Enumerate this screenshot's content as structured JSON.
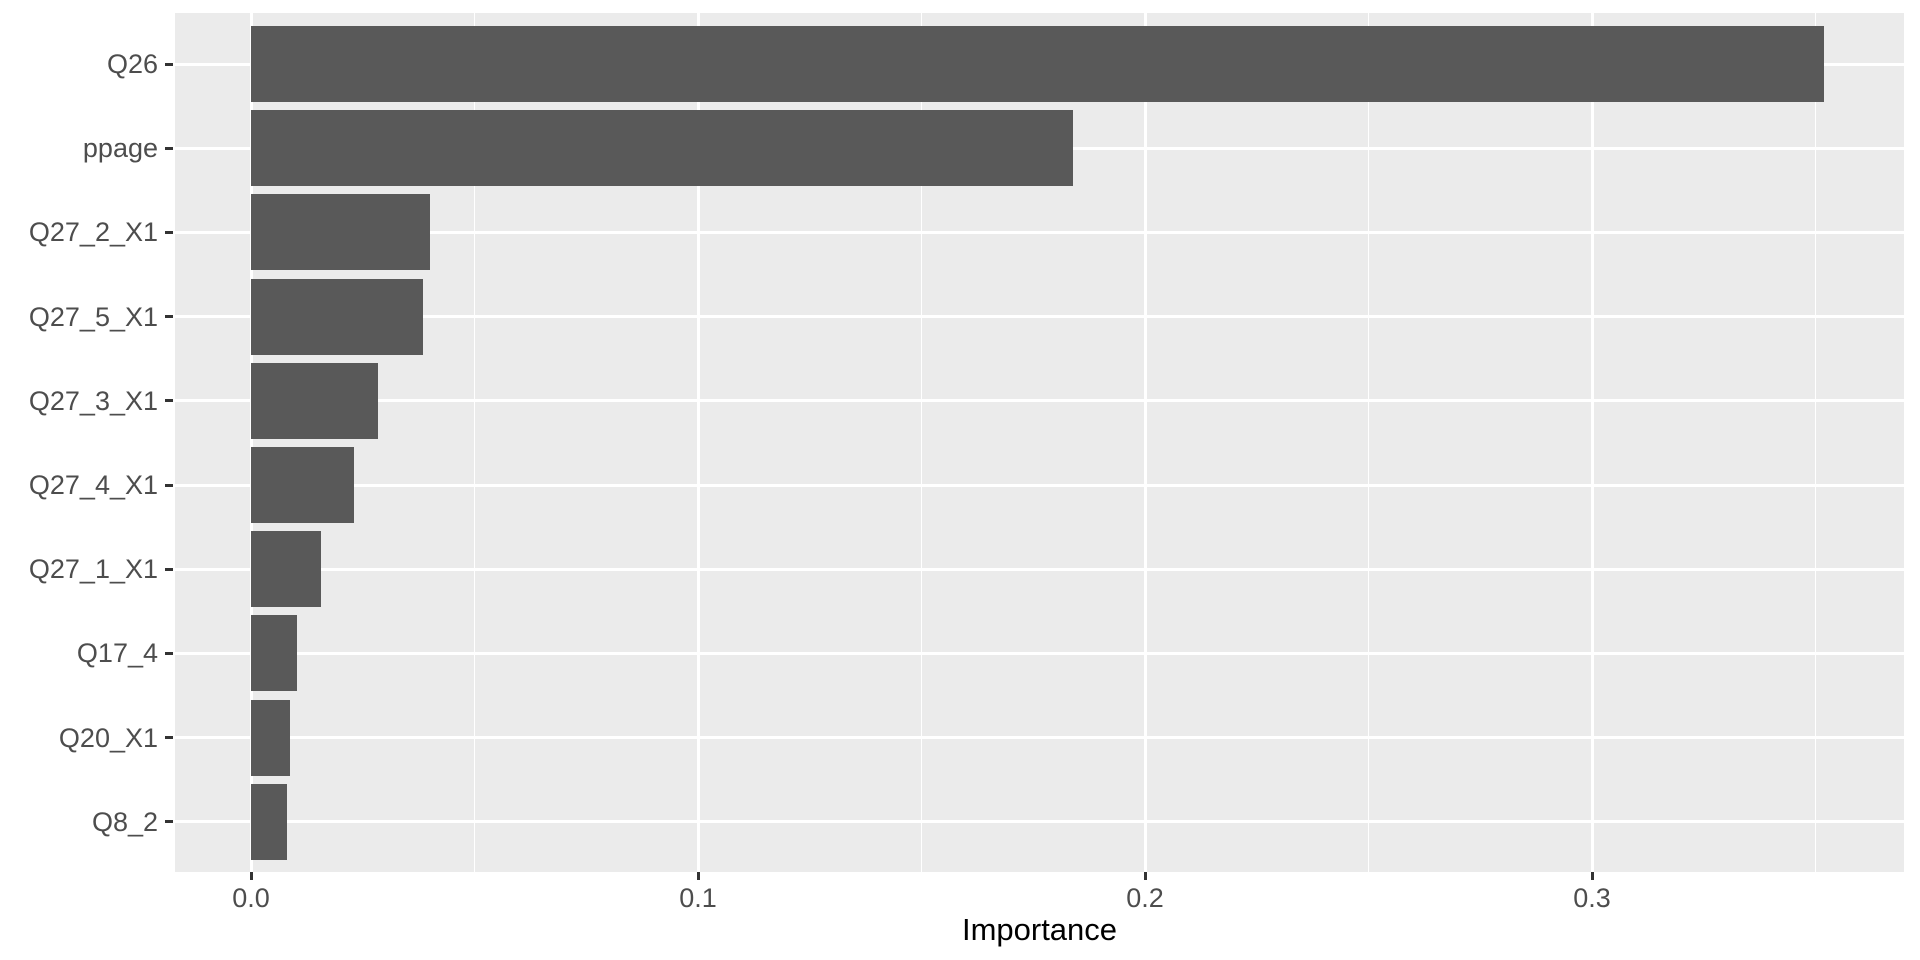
{
  "chart_data": {
    "type": "bar",
    "orientation": "horizontal",
    "title": "",
    "xlabel": "Importance",
    "ylabel": "",
    "categories": [
      "Q26",
      "ppage",
      "Q27_2_X1",
      "Q27_5_X1",
      "Q27_3_X1",
      "Q27_4_X1",
      "Q27_1_X1",
      "Q17_4",
      "Q20_X1",
      "Q8_2"
    ],
    "values": [
      0.352,
      0.184,
      0.04,
      0.0385,
      0.0284,
      0.023,
      0.0157,
      0.0103,
      0.0087,
      0.0081
    ],
    "x_axis": {
      "tick_labels": [
        "0.0",
        "0.1",
        "0.2",
        "0.3"
      ],
      "tick_values": [
        0.0,
        0.1,
        0.2,
        0.3
      ],
      "minor_gridline_values": [
        0.05,
        0.15,
        0.25,
        0.35
      ],
      "range_shown": [
        -0.0176,
        0.3699
      ]
    },
    "legend": "none",
    "grid": "on",
    "style": "ggplot2-theme-grey"
  },
  "colors": {
    "bar_fill": "#595959",
    "panel_background": "#EBEBEB",
    "gridline": "#FFFFFF",
    "tick_mark": "#333333",
    "tick_label_text": "#4D4D4D",
    "axis_title_text": "#000000",
    "page_background": "#FFFFFF"
  }
}
